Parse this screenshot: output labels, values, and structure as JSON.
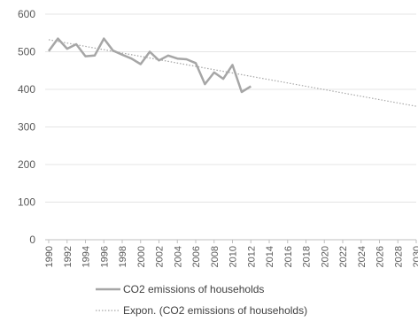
{
  "chart_data": {
    "type": "line",
    "title": "",
    "xlabel": "",
    "ylabel": "",
    "ylim": [
      0,
      600
    ],
    "yticks": [
      0,
      100,
      200,
      300,
      400,
      500,
      600
    ],
    "xlim": [
      1990,
      2030
    ],
    "xticks": [
      "1990",
      "1992",
      "1994",
      "1996",
      "1998",
      "2000",
      "2002",
      "2004",
      "2006",
      "2008",
      "2010",
      "2012",
      "2014",
      "2016",
      "2018",
      "2020",
      "2022",
      "2024",
      "2026",
      "2028",
      "2030"
    ],
    "grid": true,
    "legend_position": "bottom",
    "series": [
      {
        "name": "CO2 emissions of households",
        "color": "#a6a6a6",
        "x": [
          1990,
          1991,
          1992,
          1993,
          1994,
          1995,
          1996,
          1997,
          1998,
          1999,
          2000,
          2001,
          2002,
          2003,
          2004,
          2005,
          2006,
          2007,
          2008,
          2009,
          2010,
          2011,
          2012
        ],
        "y": [
          502,
          535,
          508,
          520,
          488,
          490,
          535,
          503,
          492,
          482,
          467,
          500,
          477,
          490,
          482,
          480,
          470,
          414,
          445,
          428,
          465,
          393,
          408
        ]
      },
      {
        "name": "Expon. (CO2 emissions of households)",
        "color": "#a6a6a6",
        "style": "dotted",
        "x": [
          1990,
          2030
        ],
        "y": [
          532,
          355
        ]
      }
    ]
  }
}
